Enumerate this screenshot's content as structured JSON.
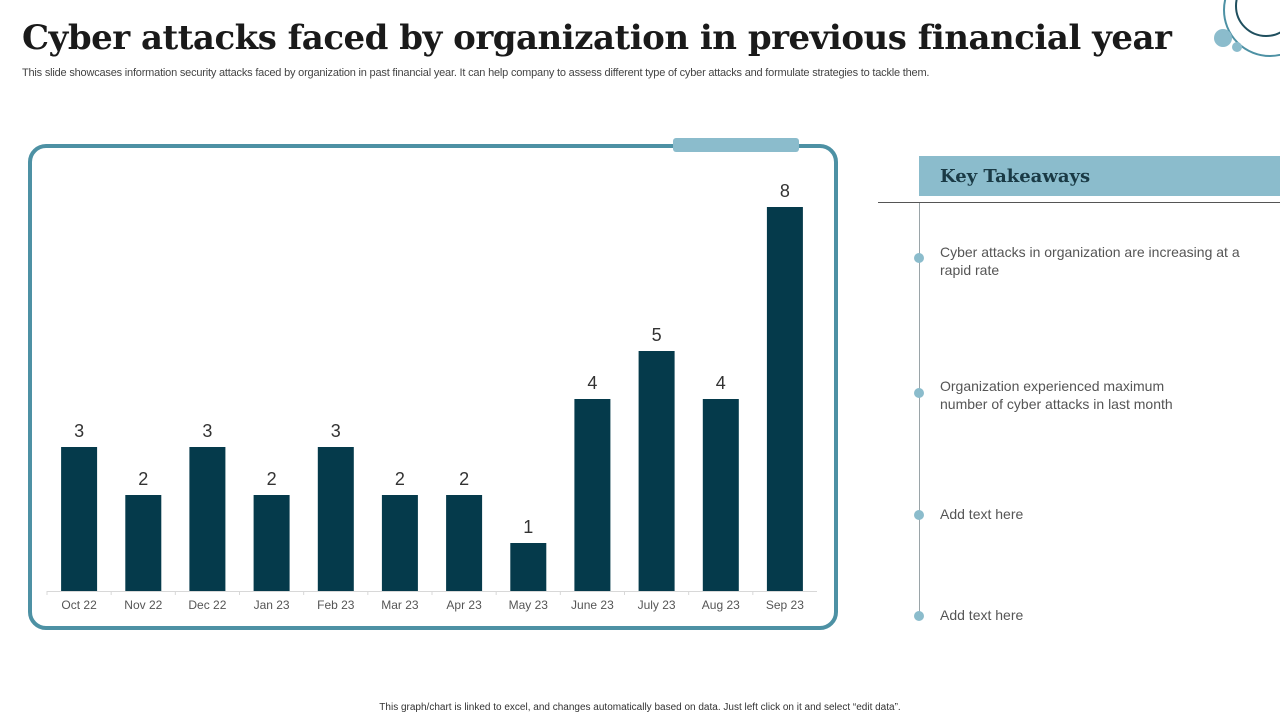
{
  "header": {
    "title": "Cyber attacks faced by organization in previous financial year",
    "subtitle": "This slide showcases information security attacks faced by organization in past financial year. It can help company to assess different type of cyber attacks and formulate strategies to tackle them."
  },
  "colors": {
    "bar": "#053a4b",
    "frame": "#4d91a4",
    "accent": "#8bbccc"
  },
  "chart_data": {
    "type": "bar",
    "title": "",
    "xlabel": "",
    "ylabel": "",
    "categories": [
      "Oct 22",
      "Nov 22",
      "Dec 22",
      "Jan 23",
      "Feb 23",
      "Mar 23",
      "Apr 23",
      "May 23",
      "June 23",
      "July 23",
      "Aug 23",
      "Sep 23"
    ],
    "values": [
      3,
      2,
      3,
      2,
      3,
      2,
      2,
      1,
      4,
      5,
      4,
      8
    ],
    "ylim": [
      0,
      8
    ],
    "grid": false,
    "data_labels": true,
    "legend": "none"
  },
  "takeaways": {
    "heading": "Key Takeaways",
    "items": [
      "Cyber attacks in organization are increasing at a rapid rate",
      "Organization experienced maximum number of cyber attacks in last month",
      "Add text here",
      "Add text here"
    ]
  },
  "footer": {
    "note": "This graph/chart is linked to excel, and changes automatically based on data. Just left click on it and select “edit data”."
  }
}
